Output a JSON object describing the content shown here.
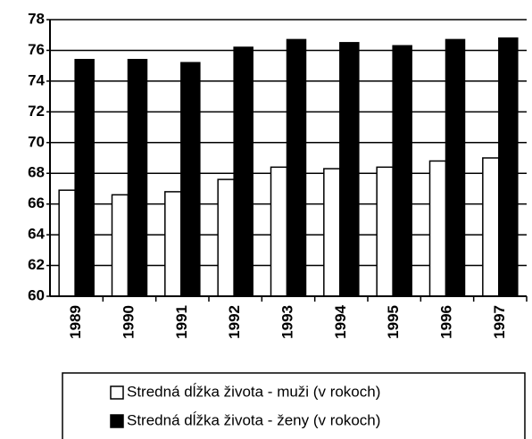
{
  "chart_data": {
    "type": "bar",
    "categories": [
      "1989",
      "1990",
      "1991",
      "1992",
      "1993",
      "1994",
      "1995",
      "1996",
      "1997"
    ],
    "series": [
      {
        "name": "Stredná dĺžka života - muži (v rokoch)",
        "color": "#ffffff",
        "values": [
          66.9,
          66.6,
          66.8,
          67.6,
          68.4,
          68.3,
          68.4,
          68.8,
          69.0
        ]
      },
      {
        "name": "Stredná dĺžka života - ženy (v rokoch)",
        "color": "#000000",
        "values": [
          75.4,
          75.4,
          75.2,
          76.2,
          76.7,
          76.5,
          76.3,
          76.7,
          76.8
        ]
      }
    ],
    "ylim": [
      60,
      78
    ],
    "yticks": [
      60,
      62,
      64,
      66,
      68,
      70,
      72,
      74,
      76,
      78
    ],
    "grid": true
  }
}
